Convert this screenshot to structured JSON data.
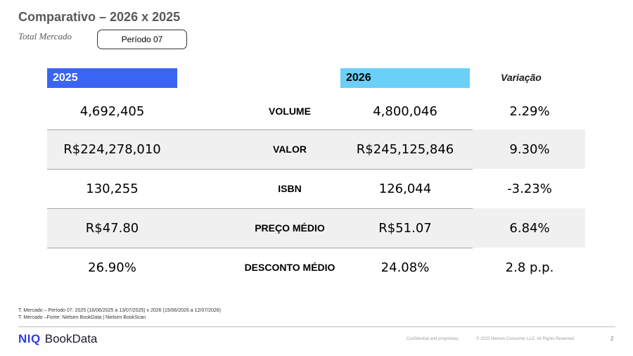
{
  "header": {
    "title": "Comparativo – 2026 x 2025",
    "subtitle": "Total Mercado",
    "period": "Período 07"
  },
  "columns": {
    "y2025": "2025",
    "y2026": "2026",
    "variation": "Variação"
  },
  "colors": {
    "header_2025": "#3a64f4",
    "header_2026": "#6bd0f7",
    "row_shade": "#f0f0f0",
    "logo_blue": "#2a3fe0"
  },
  "rows": [
    {
      "metric": "VOLUME",
      "v2025": "4,692,405",
      "v2026": "4,800,046",
      "variation": "2.29%",
      "shaded": false
    },
    {
      "metric": "VALOR",
      "v2025": "R$224,278,010",
      "v2026": "R$245,125,846",
      "variation": "9.30%",
      "shaded": true
    },
    {
      "metric": "ISBN",
      "v2025": "130,255",
      "v2026": "126,044",
      "variation": "-3.23%",
      "shaded": false
    },
    {
      "metric": "PREÇO MÉDIO",
      "v2025": "R$47.80",
      "v2026": "R$51.07",
      "variation": "6.84%",
      "shaded": true
    },
    {
      "metric": "DESCONTO MÉDIO",
      "v2025": "26.90%",
      "v2026": "24.08%",
      "variation": "2.8 p.p.",
      "shaded": false
    }
  ],
  "footnotes": [
    "T. Mercado – Período 07: 2025 (16/06/2025 a 13/07/2025) x 2026 (15/06/2026 a 12/07/2026)",
    "T. Mercado –Fonte: Nielsen BookData | Nielsen BookScan"
  ],
  "footer": {
    "logo_mark": "NIQ",
    "logo_text": "BookData",
    "confidential": "Confidential and proprietary",
    "copyright": "© 2025 Nielsen Consumer LLC. All Rights Reserved.",
    "page_number": "2"
  }
}
